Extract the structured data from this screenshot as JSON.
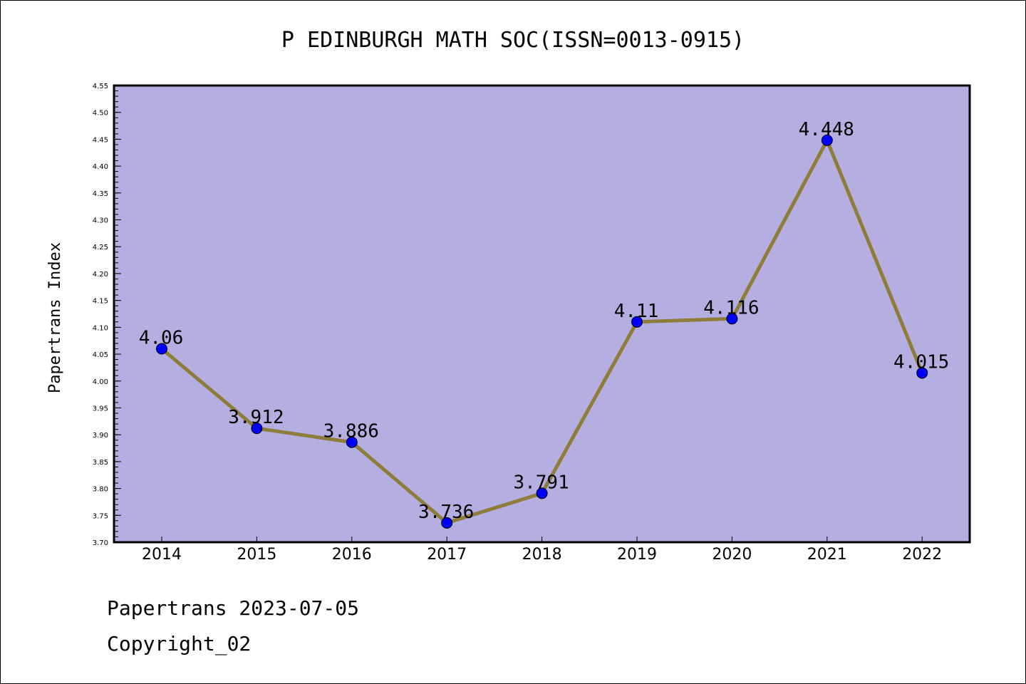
{
  "chart_data": {
    "type": "line",
    "title": "P EDINBURGH MATH SOC(ISSN=0013-0915)",
    "xlabel": "",
    "ylabel": "Papertrans Index",
    "x": [
      "2014",
      "2015",
      "2016",
      "2017",
      "2018",
      "2019",
      "2020",
      "2021",
      "2022"
    ],
    "values": [
      4.06,
      3.912,
      3.886,
      3.736,
      3.791,
      4.11,
      4.116,
      4.448,
      4.015
    ],
    "data_labels": [
      "4.06",
      "3.912",
      "3.886",
      "3.736",
      "3.791",
      "4.11",
      "4.116",
      "4.448",
      "4.015"
    ],
    "ylim": [
      3.7,
      4.55
    ],
    "yticks": [
      "3.70",
      "3.75",
      "3.80",
      "3.85",
      "3.90",
      "3.95",
      "4.00",
      "4.05",
      "4.10",
      "4.15",
      "4.20",
      "4.25",
      "4.30",
      "4.35",
      "4.40",
      "4.45",
      "4.50",
      "4.55"
    ],
    "grid": false,
    "legend": "none",
    "colors": {
      "plot_background": "#b5aee0",
      "line": "#8e7d3a",
      "marker": "#0000ff"
    }
  },
  "footer": {
    "line1": "Papertrans 2023-07-05",
    "line2": "Copyright_02"
  }
}
